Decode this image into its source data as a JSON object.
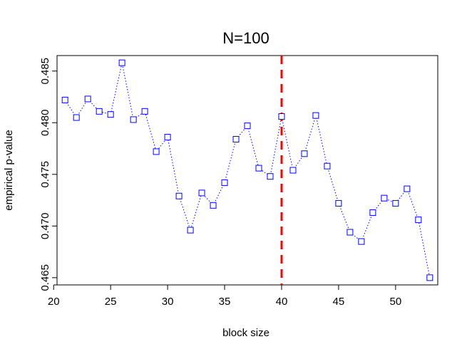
{
  "chart_data": {
    "type": "line",
    "title": "N=100",
    "xlabel": "block size",
    "ylabel": "empirical p-value",
    "xlim": [
      20.3,
      53.7
    ],
    "ylim": [
      0.4643,
      0.4865
    ],
    "x_ticks": [
      20,
      25,
      30,
      35,
      40,
      45,
      50
    ],
    "y_ticks": [
      0.465,
      0.47,
      0.475,
      0.48,
      0.485
    ],
    "y_tick_labels": [
      "0.465",
      "0.470",
      "0.475",
      "0.480",
      "0.485"
    ],
    "grid": false,
    "series": [
      {
        "line_style": "dotted",
        "marker": "open-square",
        "color": "#0000FF",
        "x": [
          21,
          22,
          23,
          24,
          25,
          26,
          27,
          28,
          29,
          30,
          31,
          32,
          33,
          34,
          35,
          36,
          37,
          38,
          39,
          40,
          41,
          42,
          43,
          44,
          45,
          46,
          47,
          48,
          49,
          50,
          51,
          52,
          53
        ],
        "y": [
          0.4822,
          0.4805,
          0.4823,
          0.4811,
          0.4808,
          0.4858,
          0.4803,
          0.4811,
          0.4772,
          0.4786,
          0.4729,
          0.4696,
          0.4732,
          0.472,
          0.4742,
          0.4784,
          0.4797,
          0.4756,
          0.4748,
          0.4806,
          0.4754,
          0.477,
          0.4807,
          0.4758,
          0.4722,
          0.4694,
          0.4685,
          0.4713,
          0.4727,
          0.4722,
          0.4736,
          0.4706,
          0.465
        ]
      }
    ],
    "vline": {
      "x": 40,
      "color": "#FF0000",
      "line_style": "dashed"
    }
  }
}
